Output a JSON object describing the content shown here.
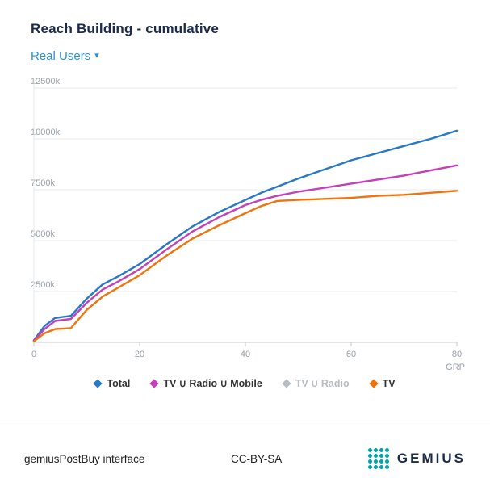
{
  "page": {
    "title": "Reach Building - cumulative",
    "metric_selector": {
      "label": "Real Users",
      "caret": "▾"
    }
  },
  "chart_data": {
    "type": "line",
    "title": "Reach Building - cumulative",
    "x": [
      0,
      2,
      4,
      7,
      10,
      13,
      16,
      20,
      25,
      30,
      35,
      40,
      43,
      46,
      50,
      55,
      60,
      65,
      70,
      75,
      80
    ],
    "series": [
      {
        "name": "Total",
        "color": "#2878c8",
        "enabled": true,
        "values": [
          100,
          800,
          1200,
          1300,
          2150,
          2850,
          3250,
          3850,
          4800,
          5700,
          6400,
          7000,
          7350,
          7650,
          8050,
          8500,
          8950,
          9300,
          9650,
          10000,
          10400
        ]
      },
      {
        "name": "TV ∪ Radio ∪ Mobile",
        "color": "#c440b8",
        "enabled": true,
        "values": [
          80,
          650,
          1050,
          1150,
          1950,
          2600,
          3000,
          3600,
          4550,
          5450,
          6150,
          6750,
          7000,
          7200,
          7400,
          7600,
          7800,
          8000,
          8200,
          8450,
          8700
        ]
      },
      {
        "name": "TV ∪ Radio",
        "color": "#b9bdc1",
        "enabled": false,
        "values": null
      },
      {
        "name": "TV",
        "color": "#f0730e",
        "enabled": true,
        "values": [
          50,
          450,
          650,
          700,
          1600,
          2250,
          2700,
          3300,
          4250,
          5100,
          5750,
          6350,
          6700,
          6950,
          7000,
          7050,
          7100,
          7200,
          7250,
          7350,
          7450
        ]
      }
    ],
    "xlabel": "GRP",
    "ylabel": "",
    "xlim": [
      0,
      80
    ],
    "ylim": [
      0,
      12500
    ],
    "xticks": [
      0,
      20,
      40,
      60,
      80
    ],
    "yticks": [
      2500,
      5000,
      7500,
      10000,
      12500
    ],
    "ytick_labels": [
      "2500k",
      "5000k",
      "7500k",
      "10000k",
      "12500k"
    ],
    "grid": true,
    "legend_position": "bottom"
  },
  "footer": {
    "left": "gemiusPostBuy interface",
    "center": "CC-BY-SA",
    "brand": "GEMIUS"
  }
}
